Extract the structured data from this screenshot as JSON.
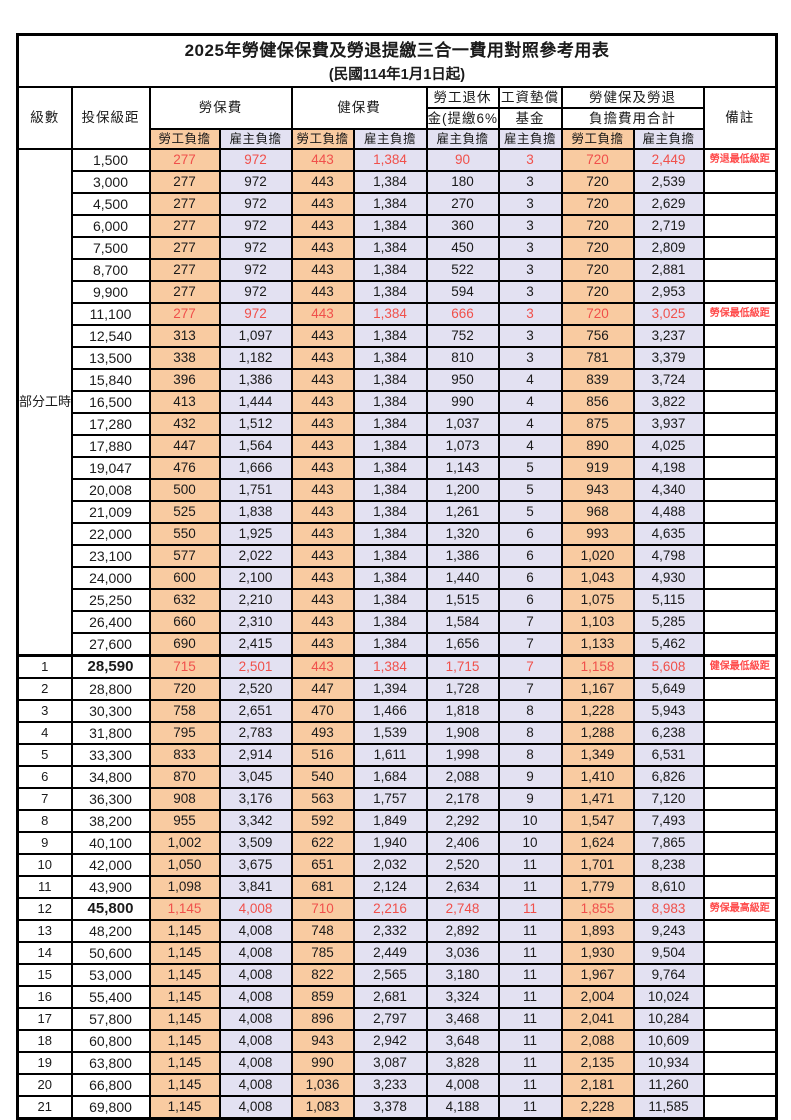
{
  "title": "2025年勞健保保費及勞退提繳三合一費用對照參考用表",
  "subtitle": "(民國114年1月1日起)",
  "header": {
    "level": "級數",
    "bracket": "投保級距",
    "labor_insurance": "勞保費",
    "health_insurance": "健保費",
    "pension_line1": "勞工退休",
    "pension_line2": "金(提繳6%)",
    "wage_fund_line1": "工資墊償",
    "wage_fund_line2": "基金",
    "total_line1": "勞健保及勞退",
    "total_line2": "負擔費用合計",
    "note": "備註",
    "employee": "勞工負擔",
    "employer": "雇主負擔"
  },
  "part_time_label": "部分工時",
  "colors": {
    "employee_bg": "#f9cba1",
    "employer_bg": "#e3e1f2",
    "highlight_value_red": "#f0504b",
    "note_red": "#ff4c4c",
    "border_black": "#000000"
  },
  "rows": [
    {
      "level": "",
      "bracket": "1,500",
      "values": [
        "277",
        "972",
        "443",
        "1,384",
        "90",
        "3",
        "720",
        "2,449"
      ],
      "note": "勞退最低級距",
      "highlight": true
    },
    {
      "level": "",
      "bracket": "3,000",
      "values": [
        "277",
        "972",
        "443",
        "1,384",
        "180",
        "3",
        "720",
        "2,539"
      ],
      "note": "",
      "highlight": false
    },
    {
      "level": "",
      "bracket": "4,500",
      "values": [
        "277",
        "972",
        "443",
        "1,384",
        "270",
        "3",
        "720",
        "2,629"
      ],
      "note": "",
      "highlight": false
    },
    {
      "level": "",
      "bracket": "6,000",
      "values": [
        "277",
        "972",
        "443",
        "1,384",
        "360",
        "3",
        "720",
        "2,719"
      ],
      "note": "",
      "highlight": false
    },
    {
      "level": "",
      "bracket": "7,500",
      "values": [
        "277",
        "972",
        "443",
        "1,384",
        "450",
        "3",
        "720",
        "2,809"
      ],
      "note": "",
      "highlight": false
    },
    {
      "level": "",
      "bracket": "8,700",
      "values": [
        "277",
        "972",
        "443",
        "1,384",
        "522",
        "3",
        "720",
        "2,881"
      ],
      "note": "",
      "highlight": false
    },
    {
      "level": "",
      "bracket": "9,900",
      "values": [
        "277",
        "972",
        "443",
        "1,384",
        "594",
        "3",
        "720",
        "2,953"
      ],
      "note": "",
      "highlight": false
    },
    {
      "level": "",
      "bracket": "11,100",
      "values": [
        "277",
        "972",
        "443",
        "1,384",
        "666",
        "3",
        "720",
        "3,025"
      ],
      "note": "勞保最低級距",
      "highlight": true
    },
    {
      "level": "",
      "bracket": "12,540",
      "values": [
        "313",
        "1,097",
        "443",
        "1,384",
        "752",
        "3",
        "756",
        "3,237"
      ],
      "note": "",
      "highlight": false
    },
    {
      "level": "",
      "bracket": "13,500",
      "values": [
        "338",
        "1,182",
        "443",
        "1,384",
        "810",
        "3",
        "781",
        "3,379"
      ],
      "note": "",
      "highlight": false
    },
    {
      "level": "",
      "bracket": "15,840",
      "values": [
        "396",
        "1,386",
        "443",
        "1,384",
        "950",
        "4",
        "839",
        "3,724"
      ],
      "note": "",
      "highlight": false
    },
    {
      "level": "",
      "bracket": "16,500",
      "values": [
        "413",
        "1,444",
        "443",
        "1,384",
        "990",
        "4",
        "856",
        "3,822"
      ],
      "note": "",
      "highlight": false
    },
    {
      "level": "",
      "bracket": "17,280",
      "values": [
        "432",
        "1,512",
        "443",
        "1,384",
        "1,037",
        "4",
        "875",
        "3,937"
      ],
      "note": "",
      "highlight": false
    },
    {
      "level": "",
      "bracket": "17,880",
      "values": [
        "447",
        "1,564",
        "443",
        "1,384",
        "1,073",
        "4",
        "890",
        "4,025"
      ],
      "note": "",
      "highlight": false
    },
    {
      "level": "",
      "bracket": "19,047",
      "values": [
        "476",
        "1,666",
        "443",
        "1,384",
        "1,143",
        "5",
        "919",
        "4,198"
      ],
      "note": "",
      "highlight": false
    },
    {
      "level": "",
      "bracket": "20,008",
      "values": [
        "500",
        "1,751",
        "443",
        "1,384",
        "1,200",
        "5",
        "943",
        "4,340"
      ],
      "note": "",
      "highlight": false
    },
    {
      "level": "",
      "bracket": "21,009",
      "values": [
        "525",
        "1,838",
        "443",
        "1,384",
        "1,261",
        "5",
        "968",
        "4,488"
      ],
      "note": "",
      "highlight": false
    },
    {
      "level": "",
      "bracket": "22,000",
      "values": [
        "550",
        "1,925",
        "443",
        "1,384",
        "1,320",
        "6",
        "993",
        "4,635"
      ],
      "note": "",
      "highlight": false
    },
    {
      "level": "",
      "bracket": "23,100",
      "values": [
        "577",
        "2,022",
        "443",
        "1,384",
        "1,386",
        "6",
        "1,020",
        "4,798"
      ],
      "note": "",
      "highlight": false
    },
    {
      "level": "",
      "bracket": "24,000",
      "values": [
        "600",
        "2,100",
        "443",
        "1,384",
        "1,440",
        "6",
        "1,043",
        "4,930"
      ],
      "note": "",
      "highlight": false
    },
    {
      "level": "",
      "bracket": "25,250",
      "values": [
        "632",
        "2,210",
        "443",
        "1,384",
        "1,515",
        "6",
        "1,075",
        "5,115"
      ],
      "note": "",
      "highlight": false
    },
    {
      "level": "",
      "bracket": "26,400",
      "values": [
        "660",
        "2,310",
        "443",
        "1,384",
        "1,584",
        "7",
        "1,103",
        "5,285"
      ],
      "note": "",
      "highlight": false
    },
    {
      "level": "",
      "bracket": "27,600",
      "values": [
        "690",
        "2,415",
        "443",
        "1,384",
        "1,656",
        "7",
        "1,133",
        "5,462"
      ],
      "note": "",
      "highlight": false
    },
    {
      "level": "1",
      "bracket": "28,590",
      "values": [
        "715",
        "2,501",
        "443",
        "1,384",
        "1,715",
        "7",
        "1,158",
        "5,608"
      ],
      "note": "健保最低級距",
      "highlight": true
    },
    {
      "level": "2",
      "bracket": "28,800",
      "values": [
        "720",
        "2,520",
        "447",
        "1,394",
        "1,728",
        "7",
        "1,167",
        "5,649"
      ],
      "note": "",
      "highlight": false
    },
    {
      "level": "3",
      "bracket": "30,300",
      "values": [
        "758",
        "2,651",
        "470",
        "1,466",
        "1,818",
        "8",
        "1,228",
        "5,943"
      ],
      "note": "",
      "highlight": false
    },
    {
      "level": "4",
      "bracket": "31,800",
      "values": [
        "795",
        "2,783",
        "493",
        "1,539",
        "1,908",
        "8",
        "1,288",
        "6,238"
      ],
      "note": "",
      "highlight": false
    },
    {
      "level": "5",
      "bracket": "33,300",
      "values": [
        "833",
        "2,914",
        "516",
        "1,611",
        "1,998",
        "8",
        "1,349",
        "6,531"
      ],
      "note": "",
      "highlight": false
    },
    {
      "level": "6",
      "bracket": "34,800",
      "values": [
        "870",
        "3,045",
        "540",
        "1,684",
        "2,088",
        "9",
        "1,410",
        "6,826"
      ],
      "note": "",
      "highlight": false
    },
    {
      "level": "7",
      "bracket": "36,300",
      "values": [
        "908",
        "3,176",
        "563",
        "1,757",
        "2,178",
        "9",
        "1,471",
        "7,120"
      ],
      "note": "",
      "highlight": false
    },
    {
      "level": "8",
      "bracket": "38,200",
      "values": [
        "955",
        "3,342",
        "592",
        "1,849",
        "2,292",
        "10",
        "1,547",
        "7,493"
      ],
      "note": "",
      "highlight": false
    },
    {
      "level": "9",
      "bracket": "40,100",
      "values": [
        "1,002",
        "3,509",
        "622",
        "1,940",
        "2,406",
        "10",
        "1,624",
        "7,865"
      ],
      "note": "",
      "highlight": false
    },
    {
      "level": "10",
      "bracket": "42,000",
      "values": [
        "1,050",
        "3,675",
        "651",
        "2,032",
        "2,520",
        "11",
        "1,701",
        "8,238"
      ],
      "note": "",
      "highlight": false
    },
    {
      "level": "11",
      "bracket": "43,900",
      "values": [
        "1,098",
        "3,841",
        "681",
        "2,124",
        "2,634",
        "11",
        "1,779",
        "8,610"
      ],
      "note": "",
      "highlight": false
    },
    {
      "level": "12",
      "bracket": "45,800",
      "values": [
        "1,145",
        "4,008",
        "710",
        "2,216",
        "2,748",
        "11",
        "1,855",
        "8,983"
      ],
      "note": "勞保最高級距",
      "highlight": true
    },
    {
      "level": "13",
      "bracket": "48,200",
      "values": [
        "1,145",
        "4,008",
        "748",
        "2,332",
        "2,892",
        "11",
        "1,893",
        "9,243"
      ],
      "note": "",
      "highlight": false
    },
    {
      "level": "14",
      "bracket": "50,600",
      "values": [
        "1,145",
        "4,008",
        "785",
        "2,449",
        "3,036",
        "11",
        "1,930",
        "9,504"
      ],
      "note": "",
      "highlight": false
    },
    {
      "level": "15",
      "bracket": "53,000",
      "values": [
        "1,145",
        "4,008",
        "822",
        "2,565",
        "3,180",
        "11",
        "1,967",
        "9,764"
      ],
      "note": "",
      "highlight": false
    },
    {
      "level": "16",
      "bracket": "55,400",
      "values": [
        "1,145",
        "4,008",
        "859",
        "2,681",
        "3,324",
        "11",
        "2,004",
        "10,024"
      ],
      "note": "",
      "highlight": false
    },
    {
      "level": "17",
      "bracket": "57,800",
      "values": [
        "1,145",
        "4,008",
        "896",
        "2,797",
        "3,468",
        "11",
        "2,041",
        "10,284"
      ],
      "note": "",
      "highlight": false
    },
    {
      "level": "18",
      "bracket": "60,800",
      "values": [
        "1,145",
        "4,008",
        "943",
        "2,942",
        "3,648",
        "11",
        "2,088",
        "10,609"
      ],
      "note": "",
      "highlight": false
    },
    {
      "level": "19",
      "bracket": "63,800",
      "values": [
        "1,145",
        "4,008",
        "990",
        "3,087",
        "3,828",
        "11",
        "2,135",
        "10,934"
      ],
      "note": "",
      "highlight": false
    },
    {
      "level": "20",
      "bracket": "66,800",
      "values": [
        "1,145",
        "4,008",
        "1,036",
        "3,233",
        "4,008",
        "11",
        "2,181",
        "11,260"
      ],
      "note": "",
      "highlight": false
    },
    {
      "level": "21",
      "bracket": "69,800",
      "values": [
        "1,145",
        "4,008",
        "1,083",
        "3,378",
        "4,188",
        "11",
        "2,228",
        "11,585"
      ],
      "note": "",
      "highlight": false
    }
  ]
}
